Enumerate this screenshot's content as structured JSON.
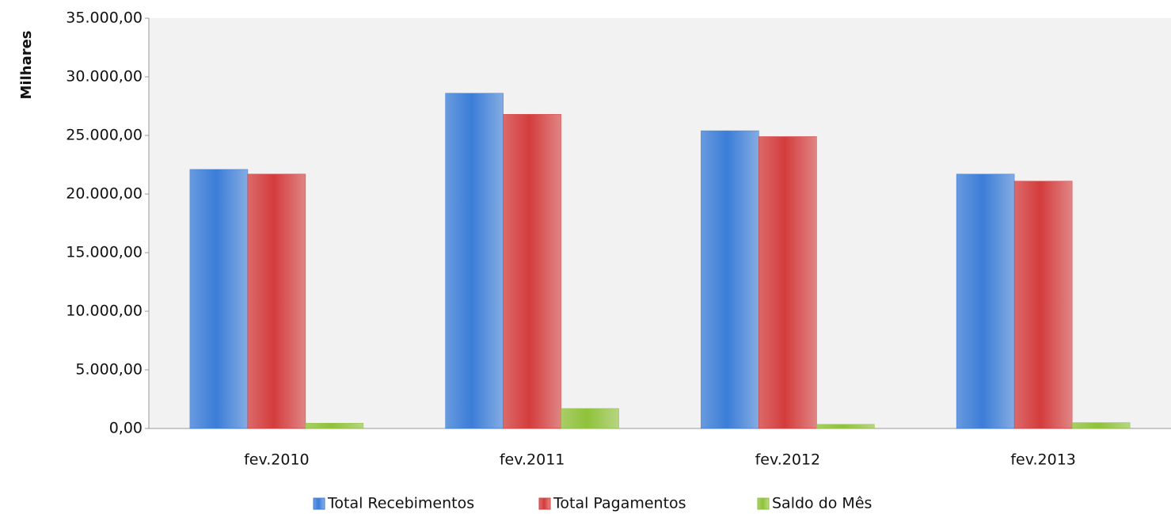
{
  "chart_data": {
    "type": "bar",
    "y_label": "Milhares",
    "categories": [
      "fev.2010",
      "fev.2011",
      "fev.2012",
      "fev.2013"
    ],
    "series": [
      {
        "name": "Total Recebimentos",
        "color": "#3b7dd8",
        "values": [
          22100,
          28600,
          25400,
          21700
        ]
      },
      {
        "name": "Total Pagamentos",
        "color": "#d43c3c",
        "values": [
          21700,
          26800,
          24900,
          21100
        ]
      },
      {
        "name": "Saldo do Mês",
        "color": "#8fc23a",
        "values": [
          450,
          1700,
          350,
          500
        ]
      }
    ],
    "ylim": [
      0,
      35000
    ],
    "yticks": [
      {
        "value": 0,
        "label": "0,00"
      },
      {
        "value": 5000,
        "label": "5.000,00"
      },
      {
        "value": 10000,
        "label": "10.000,00"
      },
      {
        "value": 15000,
        "label": "15.000,00"
      },
      {
        "value": 20000,
        "label": "20.000,00"
      },
      {
        "value": 25000,
        "label": "25.000,00"
      },
      {
        "value": 30000,
        "label": "30.000,00"
      },
      {
        "value": 35000,
        "label": "35.000,00"
      }
    ],
    "grid": false,
    "legend": "bottom"
  }
}
